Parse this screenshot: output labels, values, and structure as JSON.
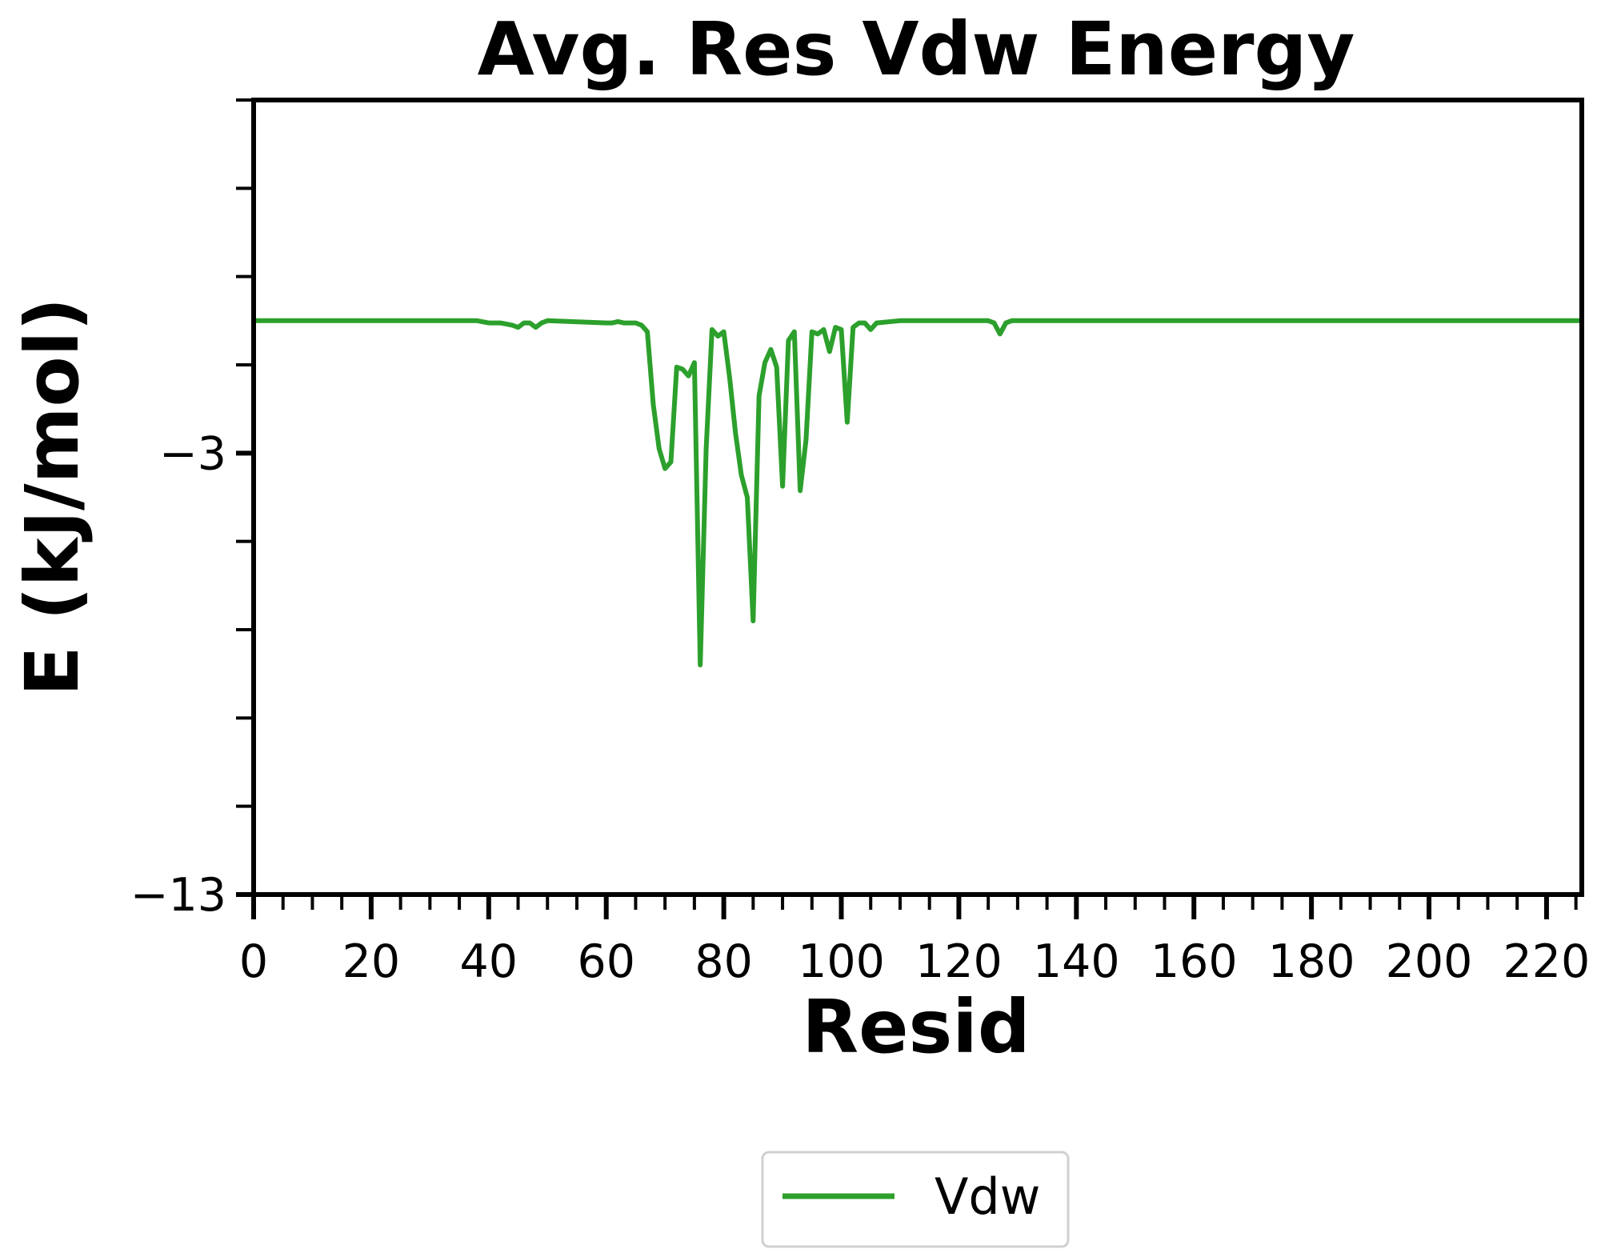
{
  "chart_data": {
    "type": "line",
    "title": "Avg. Res Vdw Energy",
    "xlabel": "Resid",
    "ylabel": "E (kJ/mol)",
    "xlim": [
      0,
      226
    ],
    "ylim": [
      -13,
      5
    ],
    "x_ticks": [
      0,
      20,
      40,
      60,
      80,
      100,
      120,
      140,
      160,
      180,
      200,
      220
    ],
    "x_tick_labels": [
      "0",
      "20",
      "40",
      "60",
      "80",
      "100",
      "120",
      "140",
      "160",
      "180",
      "200",
      "220"
    ],
    "y_ticks": [
      -13,
      -3
    ],
    "y_tick_labels": [
      "−13",
      "−3"
    ],
    "grid": false,
    "legend_position": "bottom-center",
    "colors": {
      "Vdw": "#2ca02c"
    },
    "series": [
      {
        "name": "Vdw",
        "x": [
          0,
          38,
          40,
          42,
          44,
          45,
          46,
          47,
          48,
          49,
          50,
          60,
          61,
          62,
          63,
          64,
          65,
          66,
          67,
          68,
          69,
          70,
          71,
          72,
          73,
          74,
          75,
          76,
          77,
          78,
          79,
          80,
          81,
          82,
          83,
          84,
          85,
          86,
          87,
          88,
          89,
          90,
          91,
          92,
          93,
          94,
          95,
          96,
          97,
          98,
          99,
          100,
          101,
          102,
          103,
          104,
          105,
          106,
          110,
          125,
          126,
          127,
          128,
          129,
          130,
          131,
          226
        ],
        "y": [
          0.0,
          0.0,
          -0.05,
          -0.05,
          -0.1,
          -0.15,
          -0.05,
          -0.05,
          -0.15,
          -0.05,
          0.0,
          -0.05,
          -0.05,
          -0.02,
          -0.05,
          -0.05,
          -0.05,
          -0.1,
          -0.25,
          -1.9,
          -2.9,
          -3.35,
          -3.2,
          -1.05,
          -1.1,
          -1.25,
          -0.95,
          -7.8,
          -2.9,
          -0.2,
          -0.35,
          -0.25,
          -1.3,
          -2.55,
          -3.5,
          -4.0,
          -6.8,
          -1.7,
          -0.95,
          -0.65,
          -1.05,
          -3.75,
          -0.45,
          -0.25,
          -3.85,
          -2.7,
          -0.25,
          -0.3,
          -0.2,
          -0.7,
          -0.15,
          -0.2,
          -2.3,
          -0.15,
          -0.05,
          -0.05,
          -0.2,
          -0.05,
          0.0,
          0.0,
          -0.05,
          -0.3,
          -0.05,
          0.0,
          0.0,
          0.0,
          0.0
        ]
      }
    ]
  }
}
